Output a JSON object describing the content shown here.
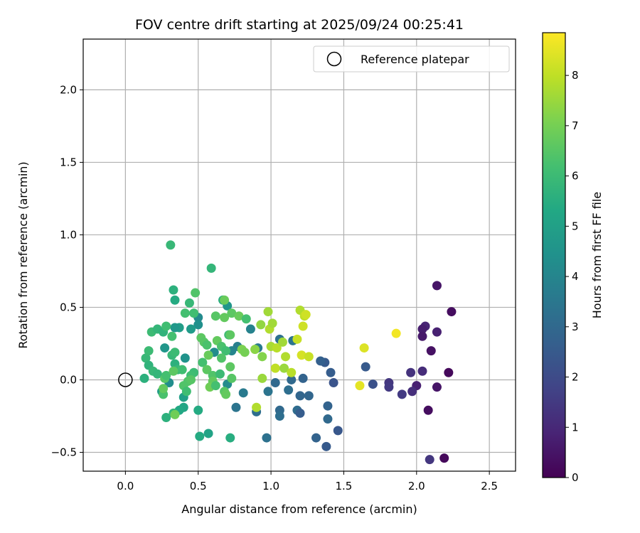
{
  "chart_data": {
    "type": "scatter",
    "title": "FOV centre drift starting at 2025/09/24 00:25:41",
    "xlabel": "Angular distance from reference (arcmin)",
    "ylabel": "Rotation from reference (arcmin)",
    "xlim": [
      -0.29,
      2.68
    ],
    "ylim": [
      -0.63,
      2.35
    ],
    "xticks": [
      0.0,
      0.5,
      1.0,
      1.5,
      2.0,
      2.5
    ],
    "xtick_labels": [
      "0.0",
      "0.5",
      "1.0",
      "1.5",
      "2.0",
      "2.5"
    ],
    "yticks": [
      -0.5,
      0.0,
      0.5,
      1.0,
      1.5,
      2.0
    ],
    "ytick_labels": [
      "−0.5",
      "0.0",
      "0.5",
      "1.0",
      "1.5",
      "2.0"
    ],
    "grid": true,
    "legend": {
      "position": "top-right",
      "entries": [
        "Reference platepar"
      ]
    },
    "reference_point": {
      "x": 0.0,
      "y": 0.0,
      "label": "Reference platepar"
    },
    "colorbar": {
      "label": "Hours from first FF file",
      "colormap": "viridis",
      "range": [
        0,
        8.85
      ],
      "ticks": [
        0,
        1,
        2,
        3,
        4,
        5,
        6,
        7,
        8
      ],
      "tick_labels": [
        "0",
        "1",
        "2",
        "3",
        "4",
        "5",
        "6",
        "7",
        "8"
      ]
    },
    "points": [
      {
        "x": 2.14,
        "y": 0.65,
        "h": 0.5
      },
      {
        "x": 2.24,
        "y": 0.47,
        "h": 0.3
      },
      {
        "x": 2.06,
        "y": 0.37,
        "h": 0.9
      },
      {
        "x": 2.04,
        "y": 0.35,
        "h": 0.7
      },
      {
        "x": 2.14,
        "y": 0.33,
        "h": 0.8
      },
      {
        "x": 2.04,
        "y": 0.3,
        "h": 0.6
      },
      {
        "x": 2.1,
        "y": 0.2,
        "h": 0.4
      },
      {
        "x": 1.96,
        "y": 0.05,
        "h": 1.3
      },
      {
        "x": 2.04,
        "y": 0.06,
        "h": 1.1
      },
      {
        "x": 2.22,
        "y": 0.05,
        "h": 0.2
      },
      {
        "x": 1.81,
        "y": -0.02,
        "h": 1.4
      },
      {
        "x": 2.0,
        "y": -0.04,
        "h": 0.8
      },
      {
        "x": 2.14,
        "y": -0.05,
        "h": 0.5
      },
      {
        "x": 1.81,
        "y": -0.05,
        "h": 1.5
      },
      {
        "x": 1.9,
        "y": -0.1,
        "h": 1.5
      },
      {
        "x": 1.97,
        "y": -0.08,
        "h": 1.2
      },
      {
        "x": 2.08,
        "y": -0.21,
        "h": 0.3
      },
      {
        "x": 2.19,
        "y": -0.54,
        "h": 0.2
      },
      {
        "x": 2.09,
        "y": -0.55,
        "h": 1.4
      },
      {
        "x": 1.7,
        "y": -0.03,
        "h": 2.2
      },
      {
        "x": 1.65,
        "y": 0.09,
        "h": 2.5
      },
      {
        "x": 1.43,
        "y": -0.02,
        "h": 2.3
      },
      {
        "x": 1.41,
        "y": 0.05,
        "h": 2.6
      },
      {
        "x": 1.37,
        "y": 0.12,
        "h": 2.5
      },
      {
        "x": 1.34,
        "y": 0.13,
        "h": 2.7
      },
      {
        "x": 1.46,
        "y": -0.35,
        "h": 2.4
      },
      {
        "x": 1.39,
        "y": -0.18,
        "h": 2.8
      },
      {
        "x": 1.39,
        "y": -0.27,
        "h": 3.0
      },
      {
        "x": 1.38,
        "y": -0.46,
        "h": 2.5
      },
      {
        "x": 1.31,
        "y": -0.4,
        "h": 2.8
      },
      {
        "x": 1.26,
        "y": -0.11,
        "h": 2.9
      },
      {
        "x": 1.22,
        "y": 0.01,
        "h": 2.8
      },
      {
        "x": 1.2,
        "y": -0.11,
        "h": 2.9
      },
      {
        "x": 1.18,
        "y": -0.21,
        "h": 3.1
      },
      {
        "x": 1.2,
        "y": -0.23,
        "h": 2.6
      },
      {
        "x": 1.14,
        "y": 0.0,
        "h": 3.0
      },
      {
        "x": 1.12,
        "y": -0.07,
        "h": 3.2
      },
      {
        "x": 1.15,
        "y": 0.27,
        "h": 3.4
      },
      {
        "x": 1.06,
        "y": 0.28,
        "h": 3.3
      },
      {
        "x": 1.06,
        "y": -0.21,
        "h": 3.0
      },
      {
        "x": 1.06,
        "y": -0.25,
        "h": 3.2
      },
      {
        "x": 1.03,
        "y": -0.02,
        "h": 3.0
      },
      {
        "x": 0.98,
        "y": -0.08,
        "h": 3.4
      },
      {
        "x": 0.97,
        "y": -0.4,
        "h": 3.3
      },
      {
        "x": 0.9,
        "y": -0.22,
        "h": 3.2
      },
      {
        "x": 0.91,
        "y": 0.22,
        "h": 3.6
      },
      {
        "x": 0.86,
        "y": 0.35,
        "h": 3.9
      },
      {
        "x": 0.81,
        "y": -0.09,
        "h": 3.6
      },
      {
        "x": 0.76,
        "y": -0.19,
        "h": 3.4
      },
      {
        "x": 0.77,
        "y": 0.23,
        "h": 3.8
      },
      {
        "x": 0.73,
        "y": 0.2,
        "h": 4.0
      },
      {
        "x": 0.7,
        "y": 0.51,
        "h": 4.6
      },
      {
        "x": 0.7,
        "y": -0.03,
        "h": 4.2
      },
      {
        "x": 0.61,
        "y": 0.19,
        "h": 4.3
      },
      {
        "x": 0.5,
        "y": 0.43,
        "h": 4.2
      },
      {
        "x": 0.5,
        "y": 0.38,
        "h": 4.4
      },
      {
        "x": 0.45,
        "y": 0.35,
        "h": 4.8
      },
      {
        "x": 0.41,
        "y": 0.15,
        "h": 4.5
      },
      {
        "x": 0.37,
        "y": 0.36,
        "h": 4.9
      },
      {
        "x": 0.34,
        "y": 0.36,
        "h": 4.7
      },
      {
        "x": 0.27,
        "y": 0.22,
        "h": 4.6
      },
      {
        "x": 0.3,
        "y": -0.02,
        "h": 4.3
      },
      {
        "x": 0.25,
        "y": -0.08,
        "h": 4.8
      },
      {
        "x": 0.4,
        "y": -0.12,
        "h": 5.0
      },
      {
        "x": 0.4,
        "y": -0.19,
        "h": 5.2
      },
      {
        "x": 0.37,
        "y": -0.21,
        "h": 5.3
      },
      {
        "x": 0.5,
        "y": -0.21,
        "h": 5.4
      },
      {
        "x": 0.51,
        "y": -0.39,
        "h": 5.4
      },
      {
        "x": 0.57,
        "y": -0.37,
        "h": 5.1
      },
      {
        "x": 0.72,
        "y": -0.4,
        "h": 5.5
      },
      {
        "x": 0.28,
        "y": -0.26,
        "h": 5.6
      },
      {
        "x": 0.33,
        "y": -0.23,
        "h": 5.8
      },
      {
        "x": 0.13,
        "y": 0.01,
        "h": 5.6
      },
      {
        "x": 0.14,
        "y": 0.15,
        "h": 5.9
      },
      {
        "x": 0.16,
        "y": 0.2,
        "h": 6.0
      },
      {
        "x": 0.16,
        "y": 0.1,
        "h": 5.7
      },
      {
        "x": 0.19,
        "y": 0.06,
        "h": 5.9
      },
      {
        "x": 0.22,
        "y": 0.04,
        "h": 5.8
      },
      {
        "x": 0.18,
        "y": 0.33,
        "h": 6.0
      },
      {
        "x": 0.22,
        "y": 0.35,
        "h": 5.8
      },
      {
        "x": 0.26,
        "y": 0.33,
        "h": 5.7
      },
      {
        "x": 0.28,
        "y": 0.37,
        "h": 6.1
      },
      {
        "x": 0.32,
        "y": 0.3,
        "h": 6.2
      },
      {
        "x": 0.32,
        "y": 0.17,
        "h": 5.9
      },
      {
        "x": 0.34,
        "y": 0.11,
        "h": 5.6
      },
      {
        "x": 0.34,
        "y": 0.19,
        "h": 6.0
      },
      {
        "x": 0.36,
        "y": 0.07,
        "h": 5.9
      },
      {
        "x": 0.39,
        "y": 0.07,
        "h": 6.1
      },
      {
        "x": 0.41,
        "y": 0.46,
        "h": 6.2
      },
      {
        "x": 0.44,
        "y": 0.53,
        "h": 5.9
      },
      {
        "x": 0.47,
        "y": 0.46,
        "h": 6.1
      },
      {
        "x": 0.48,
        "y": 0.6,
        "h": 6.4
      },
      {
        "x": 0.33,
        "y": 0.62,
        "h": 5.6
      },
      {
        "x": 0.34,
        "y": 0.55,
        "h": 5.4
      },
      {
        "x": 0.31,
        "y": 0.93,
        "h": 5.9
      },
      {
        "x": 0.59,
        "y": 0.77,
        "h": 5.8
      },
      {
        "x": 0.67,
        "y": 0.55,
        "h": 5.5
      },
      {
        "x": 0.68,
        "y": 0.55,
        "h": 6.8
      },
      {
        "x": 0.68,
        "y": 0.43,
        "h": 6.7
      },
      {
        "x": 0.62,
        "y": 0.44,
        "h": 6.5
      },
      {
        "x": 0.73,
        "y": 0.46,
        "h": 6.6
      },
      {
        "x": 0.78,
        "y": 0.44,
        "h": 6.8
      },
      {
        "x": 0.83,
        "y": 0.42,
        "h": 6.2
      },
      {
        "x": 0.71,
        "y": 0.31,
        "h": 6.0
      },
      {
        "x": 0.72,
        "y": 0.31,
        "h": 6.6
      },
      {
        "x": 0.63,
        "y": 0.27,
        "h": 6.7
      },
      {
        "x": 0.66,
        "y": 0.23,
        "h": 6.3
      },
      {
        "x": 0.69,
        "y": 0.2,
        "h": 6.1
      },
      {
        "x": 0.52,
        "y": 0.29,
        "h": 6.6
      },
      {
        "x": 0.54,
        "y": 0.26,
        "h": 6.5
      },
      {
        "x": 0.56,
        "y": 0.24,
        "h": 6.3
      },
      {
        "x": 0.57,
        "y": 0.17,
        "h": 6.8
      },
      {
        "x": 0.53,
        "y": 0.12,
        "h": 6.2
      },
      {
        "x": 0.47,
        "y": 0.05,
        "h": 6.0
      },
      {
        "x": 0.45,
        "y": 0.03,
        "h": 6.1
      },
      {
        "x": 0.43,
        "y": -0.01,
        "h": 6.4
      },
      {
        "x": 0.45,
        "y": 0.0,
        "h": 6.5
      },
      {
        "x": 0.56,
        "y": 0.07,
        "h": 6.6
      },
      {
        "x": 0.6,
        "y": 0.03,
        "h": 6.4
      },
      {
        "x": 0.6,
        "y": -0.01,
        "h": 6.7
      },
      {
        "x": 0.58,
        "y": -0.05,
        "h": 6.9
      },
      {
        "x": 0.62,
        "y": -0.04,
        "h": 6.2
      },
      {
        "x": 0.65,
        "y": 0.04,
        "h": 6.0
      },
      {
        "x": 0.66,
        "y": 0.15,
        "h": 6.4
      },
      {
        "x": 0.68,
        "y": -0.08,
        "h": 6.5
      },
      {
        "x": 0.69,
        "y": -0.1,
        "h": 6.7
      },
      {
        "x": 0.72,
        "y": 0.09,
        "h": 6.6
      },
      {
        "x": 0.73,
        "y": 0.01,
        "h": 6.5
      },
      {
        "x": 0.4,
        "y": -0.04,
        "h": 6.4
      },
      {
        "x": 0.42,
        "y": -0.08,
        "h": 6.1
      },
      {
        "x": 0.26,
        "y": -0.1,
        "h": 6.3
      },
      {
        "x": 0.26,
        "y": -0.06,
        "h": 6.7
      },
      {
        "x": 0.27,
        "y": 0.01,
        "h": 6.5
      },
      {
        "x": 0.28,
        "y": 0.03,
        "h": 6.2
      },
      {
        "x": 0.34,
        "y": -0.24,
        "h": 6.9
      },
      {
        "x": 0.33,
        "y": 0.06,
        "h": 6.6
      },
      {
        "x": 0.8,
        "y": 0.21,
        "h": 7.1
      },
      {
        "x": 0.82,
        "y": 0.19,
        "h": 7.0
      },
      {
        "x": 0.89,
        "y": 0.21,
        "h": 7.3
      },
      {
        "x": 0.93,
        "y": 0.38,
        "h": 7.4
      },
      {
        "x": 0.94,
        "y": 0.16,
        "h": 7.2
      },
      {
        "x": 0.94,
        "y": 0.01,
        "h": 7.5
      },
      {
        "x": 0.9,
        "y": -0.19,
        "h": 7.8
      },
      {
        "x": 0.98,
        "y": 0.47,
        "h": 7.6
      },
      {
        "x": 0.99,
        "y": 0.35,
        "h": 7.8
      },
      {
        "x": 1.01,
        "y": 0.39,
        "h": 7.6
      },
      {
        "x": 1.0,
        "y": 0.23,
        "h": 7.7
      },
      {
        "x": 1.04,
        "y": 0.22,
        "h": 7.9
      },
      {
        "x": 1.03,
        "y": 0.08,
        "h": 8.0
      },
      {
        "x": 1.08,
        "y": 0.26,
        "h": 7.6
      },
      {
        "x": 1.1,
        "y": 0.16,
        "h": 7.8
      },
      {
        "x": 1.09,
        "y": 0.08,
        "h": 7.5
      },
      {
        "x": 1.14,
        "y": 0.05,
        "h": 7.9
      },
      {
        "x": 1.18,
        "y": 0.28,
        "h": 8.1
      },
      {
        "x": 1.2,
        "y": 0.48,
        "h": 7.8
      },
      {
        "x": 1.23,
        "y": 0.44,
        "h": 8.0
      },
      {
        "x": 1.24,
        "y": 0.45,
        "h": 8.2
      },
      {
        "x": 1.22,
        "y": 0.37,
        "h": 8.2
      },
      {
        "x": 1.21,
        "y": 0.17,
        "h": 8.3
      },
      {
        "x": 1.26,
        "y": 0.16,
        "h": 8.1
      },
      {
        "x": 1.64,
        "y": 0.22,
        "h": 8.4
      },
      {
        "x": 1.61,
        "y": -0.04,
        "h": 8.5
      },
      {
        "x": 1.86,
        "y": 0.32,
        "h": 8.7
      }
    ]
  }
}
